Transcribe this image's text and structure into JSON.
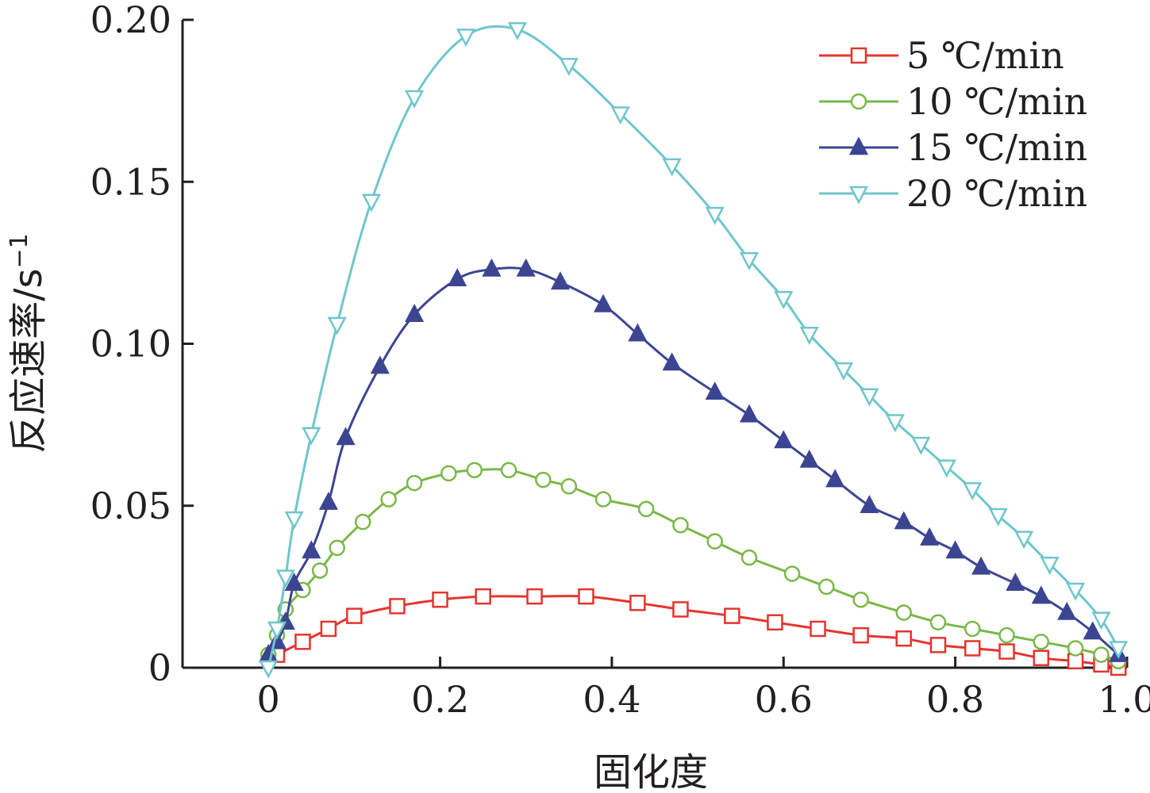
{
  "chart_data": {
    "type": "line",
    "title": "",
    "xlabel": "固化度",
    "ylabel": "反应速率/s",
    "ylabel_superscript": "−1",
    "xlim": [
      -0.1,
      1.0
    ],
    "ylim": [
      0,
      0.2
    ],
    "xticks": [
      0,
      0.2,
      0.4,
      0.6,
      0.8,
      1.0
    ],
    "xtick_labels": [
      "0",
      "0.2",
      "0.4",
      "0.6",
      "0.8",
      "1.0"
    ],
    "yticks": [
      0,
      0.05,
      0.1,
      0.15,
      0.2
    ],
    "ytick_labels": [
      "0",
      "0.05",
      "0.10",
      "0.15",
      "0.20"
    ],
    "grid": false,
    "legend_position": "top-right",
    "series": [
      {
        "name": "5 ℃/min",
        "color": "#e5342f",
        "marker": "square-open",
        "x": [
          0.01,
          0.04,
          0.07,
          0.1,
          0.15,
          0.2,
          0.25,
          0.31,
          0.37,
          0.43,
          0.48,
          0.54,
          0.59,
          0.64,
          0.69,
          0.74,
          0.78,
          0.82,
          0.86,
          0.9,
          0.94,
          0.97,
          0.99
        ],
        "values": [
          0.004,
          0.008,
          0.012,
          0.016,
          0.019,
          0.021,
          0.022,
          0.022,
          0.022,
          0.02,
          0.018,
          0.016,
          0.014,
          0.012,
          0.01,
          0.009,
          0.007,
          0.006,
          0.005,
          0.003,
          0.002,
          0.001,
          0.0
        ]
      },
      {
        "name": "10 ℃/min",
        "color": "#7ab848",
        "marker": "circle-open",
        "x": [
          0.0,
          0.01,
          0.02,
          0.04,
          0.06,
          0.08,
          0.11,
          0.14,
          0.17,
          0.21,
          0.24,
          0.28,
          0.32,
          0.35,
          0.39,
          0.44,
          0.48,
          0.52,
          0.56,
          0.61,
          0.65,
          0.69,
          0.74,
          0.78,
          0.82,
          0.86,
          0.9,
          0.94,
          0.97,
          0.99
        ],
        "values": [
          0.004,
          0.01,
          0.018,
          0.024,
          0.03,
          0.037,
          0.045,
          0.052,
          0.057,
          0.06,
          0.061,
          0.061,
          0.058,
          0.056,
          0.052,
          0.049,
          0.044,
          0.039,
          0.034,
          0.029,
          0.025,
          0.021,
          0.017,
          0.014,
          0.012,
          0.01,
          0.008,
          0.006,
          0.004,
          0.002
        ]
      },
      {
        "name": "15 ℃/min",
        "color": "#3c4591",
        "marker": "triangle-up",
        "x": [
          0.0,
          0.01,
          0.02,
          0.03,
          0.05,
          0.07,
          0.09,
          0.13,
          0.17,
          0.22,
          0.26,
          0.3,
          0.34,
          0.39,
          0.43,
          0.47,
          0.52,
          0.56,
          0.6,
          0.63,
          0.66,
          0.7,
          0.74,
          0.77,
          0.8,
          0.83,
          0.87,
          0.9,
          0.93,
          0.96,
          0.99
        ],
        "values": [
          0.004,
          0.008,
          0.014,
          0.026,
          0.036,
          0.051,
          0.071,
          0.093,
          0.109,
          0.12,
          0.123,
          0.123,
          0.119,
          0.112,
          0.103,
          0.094,
          0.085,
          0.078,
          0.07,
          0.064,
          0.058,
          0.05,
          0.045,
          0.04,
          0.036,
          0.031,
          0.026,
          0.022,
          0.017,
          0.011,
          0.004
        ]
      },
      {
        "name": "20 ℃/min",
        "color": "#6ec6cb",
        "marker": "triangle-down-open",
        "x": [
          0.0,
          0.01,
          0.02,
          0.03,
          0.05,
          0.08,
          0.12,
          0.17,
          0.23,
          0.29,
          0.35,
          0.41,
          0.47,
          0.52,
          0.56,
          0.6,
          0.63,
          0.67,
          0.7,
          0.73,
          0.76,
          0.79,
          0.82,
          0.85,
          0.88,
          0.91,
          0.94,
          0.97,
          0.99
        ],
        "values": [
          0.0,
          0.012,
          0.028,
          0.046,
          0.072,
          0.106,
          0.144,
          0.176,
          0.195,
          0.197,
          0.186,
          0.171,
          0.155,
          0.14,
          0.126,
          0.114,
          0.103,
          0.092,
          0.084,
          0.076,
          0.069,
          0.062,
          0.055,
          0.047,
          0.04,
          0.032,
          0.024,
          0.015,
          0.006
        ]
      }
    ]
  }
}
